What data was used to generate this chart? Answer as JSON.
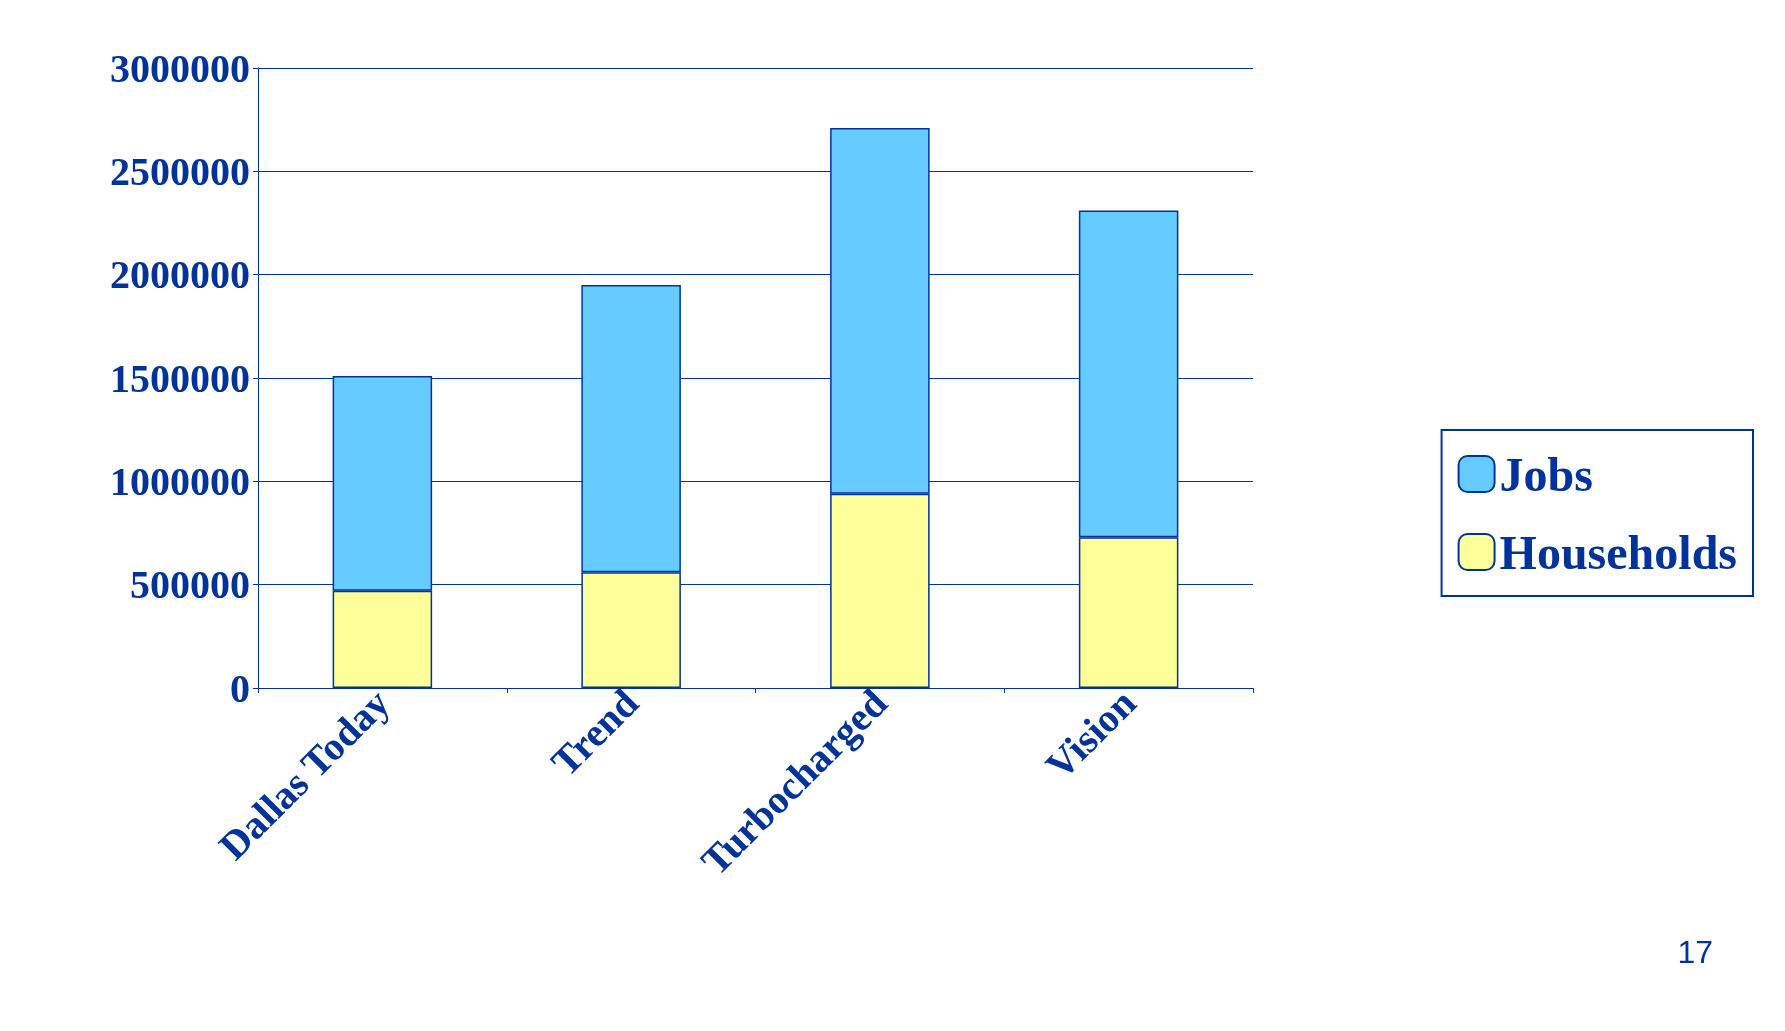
{
  "chart_data": {
    "type": "bar",
    "stacked": true,
    "categories": [
      "Dallas Today",
      "Trend",
      "Turbocharged",
      "Vision"
    ],
    "series": [
      {
        "name": "Households",
        "color": "#ffff99",
        "values": [
          470000,
          560000,
          940000,
          730000
        ]
      },
      {
        "name": "Jobs",
        "color": "#66ccff",
        "values": [
          1040000,
          1390000,
          1770000,
          1580000
        ]
      }
    ],
    "ylim": [
      0,
      3000000
    ],
    "yticks": [
      0,
      500000,
      1000000,
      1500000,
      2000000,
      2500000,
      3000000
    ],
    "grid": "y",
    "legend": "right",
    "annotations": [
      "17"
    ]
  }
}
